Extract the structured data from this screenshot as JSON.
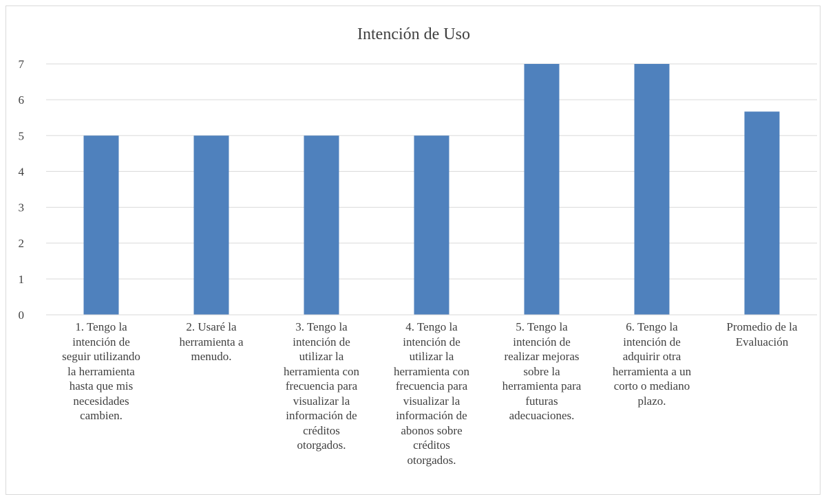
{
  "chart_data": {
    "type": "bar",
    "title": "Intención de Uso",
    "categories": [
      "1. Tengo la\nintención de\nseguir utilizando\nla herramienta\nhasta que mis\nnecesidades\ncambien.",
      "2. Usaré la\nherramienta a\nmenudo.",
      "3. Tengo la\nintención de\nutilizar la\nherramienta con\nfrecuencia para\nvisualizar la\ninformación de\ncréditos\notorgados.",
      "4. Tengo la\nintención de\nutilizar la\nherramienta con\nfrecuencia para\nvisualizar la\ninformación de\nabonos sobre\ncréditos\notorgados.",
      "5. Tengo la\nintención de\nrealizar mejoras\nsobre la\nherramienta para\nfuturas\nadecuaciones.",
      "6. Tengo la\nintención de\nadquirir otra\nherramienta a un\ncorto o mediano\nplazo.",
      "Promedio de la\nEvaluación"
    ],
    "values": [
      5,
      5,
      5,
      5,
      7,
      7,
      5.67
    ],
    "ylim": [
      0,
      7
    ],
    "yticks": [
      "0",
      "1",
      "2",
      "3",
      "4",
      "5",
      "6",
      "7"
    ],
    "grid": true,
    "bar_color": "#4f81bd",
    "grid_color": "#d9d9d9"
  }
}
